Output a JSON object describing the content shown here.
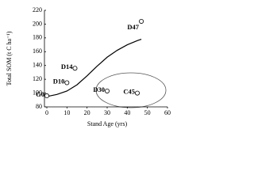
{
  "chart_data": {
    "type": "scatter",
    "x_label": "Stand Age (yrs)",
    "y_label": "Total SOM (t C ha⁻¹)",
    "xlim": [
      0,
      60
    ],
    "xticks": [
      0,
      10,
      20,
      30,
      40,
      50,
      60
    ],
    "ylim": [
      80,
      220
    ],
    "yticks": [
      80,
      100,
      120,
      140,
      160,
      180,
      200,
      220
    ],
    "points": {
      "labels": [
        "G0",
        "D10",
        "D14",
        "D30",
        "C45",
        "D47"
      ],
      "x": [
        0,
        10,
        14,
        30,
        45,
        47
      ],
      "values": [
        96,
        115,
        136,
        103,
        100,
        204
      ]
    },
    "curve": {
      "x": [
        0,
        5,
        10,
        15,
        20,
        25,
        30,
        35,
        40,
        45,
        47
      ],
      "values": [
        95,
        98,
        103,
        112,
        125,
        139,
        152,
        162,
        170,
        176,
        178
      ]
    }
  }
}
